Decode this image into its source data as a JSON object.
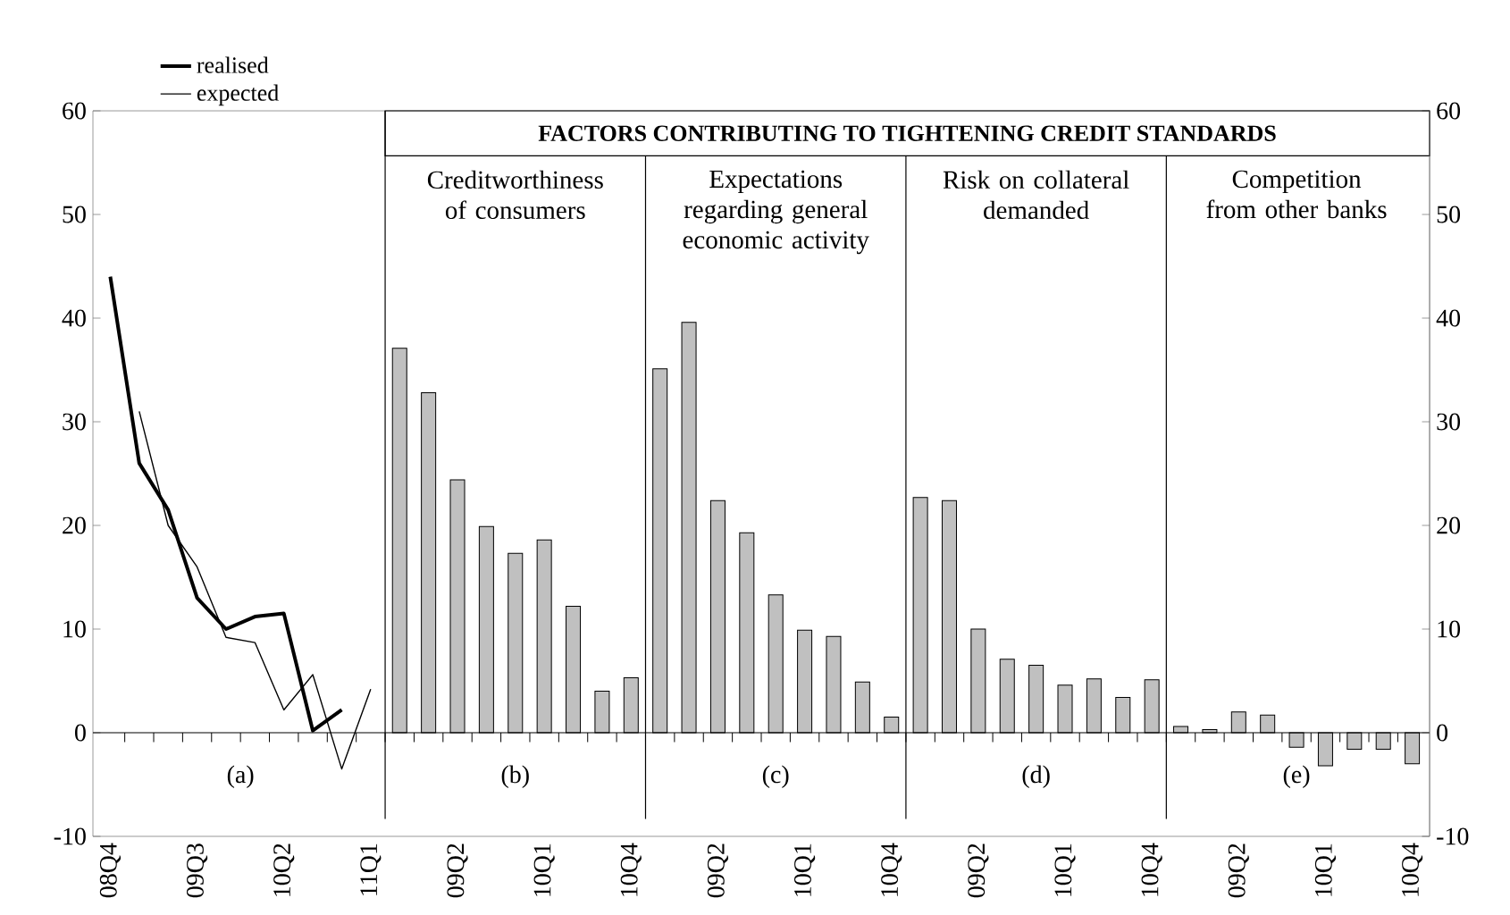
{
  "chart_data": {
    "type": "bar",
    "subtitle": "FACTORS CONTRIBUTING TO TIGHTENING CREDIT STANDARDS",
    "categories": [
      "08Q4",
      null,
      null,
      "09Q3",
      null,
      null,
      "10Q2",
      null,
      null,
      "11Q1",
      null,
      null,
      "09Q2",
      null,
      null,
      "10Q1",
      null,
      null,
      "10Q4",
      null,
      null,
      "09Q2",
      null,
      null,
      "10Q1",
      null,
      null,
      "10Q4",
      null,
      null,
      "09Q2",
      null,
      null,
      "10Q1",
      null,
      null,
      "10Q4",
      null,
      null,
      "09Q2",
      null,
      null,
      "10Q1",
      null,
      null,
      "10Q4"
    ],
    "series": [
      {
        "name": "realised",
        "type": "line",
        "color": "#000000",
        "values": [
          44,
          26,
          21.5,
          13,
          10,
          11.2,
          11.5,
          0.2,
          2.2,
          null,
          null,
          null,
          null,
          null,
          null,
          null,
          null,
          null,
          null,
          null,
          null,
          null,
          null,
          null,
          null,
          null,
          null,
          null,
          null,
          null,
          null,
          null,
          null,
          null,
          null,
          null,
          null,
          null,
          null,
          null,
          null,
          null,
          null,
          null,
          null,
          null
        ]
      },
      {
        "name": "expected",
        "type": "line",
        "color": "#000000",
        "values": [
          null,
          31,
          20,
          16,
          9.2,
          8.7,
          2.2,
          5.6,
          -3.5,
          4.2,
          null,
          null,
          null,
          null,
          null,
          null,
          null,
          null,
          null,
          null,
          null,
          null,
          null,
          null,
          null,
          null,
          null,
          null,
          null,
          null,
          null,
          null,
          null,
          null,
          null,
          null,
          null,
          null,
          null,
          null,
          null,
          null,
          null,
          null,
          null,
          null
        ]
      },
      {
        "color": "#c0c0c0",
        "values": [
          null,
          null,
          null,
          null,
          null,
          null,
          null,
          null,
          null,
          null,
          37.1,
          32.8,
          24.4,
          19.9,
          17.3,
          18.6,
          12.2,
          4.0,
          5.3,
          null,
          null,
          null,
          null,
          null,
          null,
          null,
          null,
          null,
          null,
          null,
          null,
          null,
          null,
          null,
          null,
          null,
          null,
          null,
          null,
          null,
          null,
          null,
          null,
          null,
          null,
          null
        ]
      },
      {
        "color": "#c0c0c0",
        "values": [
          null,
          null,
          null,
          null,
          null,
          null,
          null,
          null,
          null,
          null,
          null,
          null,
          null,
          null,
          null,
          null,
          null,
          null,
          null,
          35.1,
          39.6,
          22.4,
          19.3,
          13.3,
          9.9,
          9.3,
          4.9,
          1.5,
          null,
          null,
          null,
          null,
          null,
          null,
          null,
          null,
          null,
          null,
          null,
          null,
          null,
          null,
          null,
          null,
          null,
          null
        ]
      },
      {
        "color": "#c0c0c0",
        "values": [
          null,
          null,
          null,
          null,
          null,
          null,
          null,
          null,
          null,
          null,
          null,
          null,
          null,
          null,
          null,
          null,
          null,
          null,
          null,
          null,
          null,
          null,
          null,
          null,
          null,
          null,
          null,
          null,
          22.7,
          22.4,
          10.0,
          7.1,
          6.5,
          4.6,
          5.2,
          3.4,
          5.1,
          null,
          null,
          null,
          null,
          null,
          null,
          null,
          null,
          null
        ]
      },
      {
        "color": "#c0c0c0",
        "values": [
          null,
          null,
          null,
          null,
          null,
          null,
          null,
          null,
          null,
          null,
          null,
          null,
          null,
          null,
          null,
          null,
          null,
          null,
          null,
          null,
          null,
          null,
          null,
          null,
          null,
          null,
          null,
          null,
          null,
          null,
          null,
          null,
          null,
          null,
          null,
          null,
          null,
          0.6,
          0.3,
          2.0,
          1.7,
          -1.4,
          -3.2,
          -1.6,
          -1.6,
          -3.0
        ]
      }
    ],
    "annotations": [
      "Creditworthiness of consumers",
      "Expectations regarding general economic activity",
      "Risk on collateral demanded",
      "Competition from other banks",
      "(a)",
      "(b)",
      "(c)",
      "(d)",
      "(e)"
    ],
    "ylim": [
      -10,
      60
    ],
    "yticks": [
      -10,
      0,
      10,
      20,
      30,
      40,
      50,
      60
    ],
    "y2lim": [
      -10,
      60
    ],
    "y2ticks": [
      -10,
      0,
      10,
      20,
      30,
      40,
      50,
      60
    ],
    "legend": "top left"
  }
}
